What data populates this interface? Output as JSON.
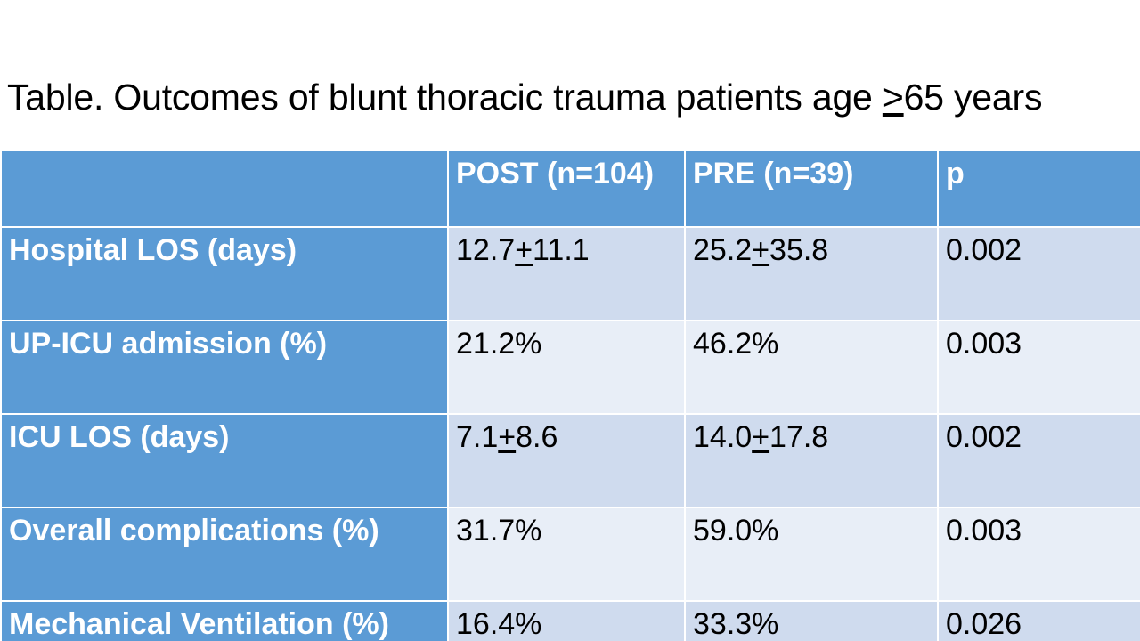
{
  "slide": {
    "title_prefix": "Table.  Outcomes of blunt thoracic trauma patients age ",
    "title_ge_symbol": ">",
    "title_suffix": "65 years"
  },
  "table": {
    "headers": [
      "",
      "POST (n=104)",
      "PRE (n=39)",
      "p"
    ],
    "rows": [
      {
        "label": "Hospital LOS (days)",
        "post_mean": "12.7",
        "post_sd": "11.1",
        "pre_mean": "25.2",
        "pre_sd": "35.8",
        "p": "0.002"
      },
      {
        "label": "UP-ICU admission (%)",
        "post": "21.2%",
        "pre": "46.2%",
        "p": "0.003"
      },
      {
        "label": "ICU LOS (days)",
        "post_mean": "7.1",
        "post_sd": "8.6",
        "pre_mean": "14.0",
        "pre_sd": "17.8",
        "p": "0.002"
      },
      {
        "label": "Overall complications (%)",
        "post": "31.7%",
        "pre": "59.0%",
        "p": "0.003"
      },
      {
        "label": "Mechanical Ventilation (%)",
        "post": "16.4%",
        "pre": "33.3%",
        "p": "0.026"
      }
    ],
    "pm_symbol": "+"
  },
  "colors": {
    "header_bg": "#5b9bd5",
    "row_odd_bg": "#cfdbee",
    "row_even_bg": "#e8eef7"
  }
}
